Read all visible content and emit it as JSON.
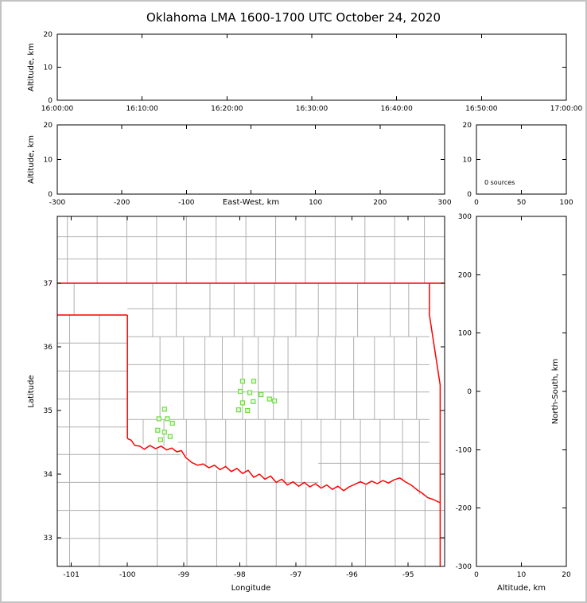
{
  "meta": {
    "title": "Oklahoma LMA 1600-1700 UTC October 24, 2020"
  },
  "colors": {
    "state_border": "#ff0000",
    "county_line": "#b0b0b0",
    "station_fill": "#e4fbda",
    "station_stroke": "#70dd46",
    "axis": "#000000",
    "background": "#ffffff",
    "frame": "#c3c3c3"
  },
  "chart_data": [
    {
      "id": "time-altitude",
      "type": "scatter",
      "points": [],
      "xlim": [
        57600,
        61200
      ],
      "ylim": [
        0,
        20
      ],
      "xticks": {
        "values": [
          57600,
          58200,
          58800,
          59400,
          60000,
          60600,
          61200
        ],
        "labels": [
          "16:00:00",
          "16:10:00",
          "16:20:00",
          "16:30:00",
          "16:40:00",
          "16:50:00",
          "17:00:00"
        ]
      },
      "yticks": {
        "values": [
          0,
          10,
          20
        ],
        "labels": [
          "0",
          "10",
          "20"
        ]
      },
      "ylabel": "Altitude, km"
    },
    {
      "id": "ew-altitude",
      "type": "scatter",
      "points": [],
      "xlim": [
        -300,
        300
      ],
      "ylim": [
        0,
        20
      ],
      "xticks": {
        "values": [
          -300,
          -200,
          -100,
          0,
          100,
          200,
          300
        ],
        "labels": [
          "-300",
          "-200",
          "-100",
          "",
          "100",
          "200",
          "300"
        ]
      },
      "yticks": {
        "values": [
          0,
          10,
          20
        ],
        "labels": [
          "0",
          "10",
          "20"
        ]
      },
      "ylabel": "Altitude, km",
      "xlabel": "East-West, km",
      "xlabel_inline": true
    },
    {
      "id": "alt-histogram",
      "type": "line",
      "points": [],
      "xlim": [
        0,
        100
      ],
      "ylim": [
        0,
        20
      ],
      "xticks": {
        "values": [
          0,
          50,
          100
        ],
        "labels": [
          "0",
          "50",
          "100"
        ]
      },
      "yticks": {
        "values": [
          0,
          10,
          20
        ],
        "labels": [
          "0",
          "10",
          "20"
        ]
      },
      "annotation": {
        "text": "0 sources"
      }
    },
    {
      "id": "plan-view",
      "type": "scatter",
      "xlim": [
        -101.25,
        -94.35
      ],
      "ylim": [
        32.55,
        38.05
      ],
      "xticks": {
        "values": [
          -101,
          -100,
          -99,
          -98,
          -97,
          -96,
          -95
        ],
        "labels": [
          "-101",
          "-100",
          "-99",
          "-98",
          "-97",
          "-96",
          "-95"
        ]
      },
      "yticks": {
        "values": [
          33,
          34,
          35,
          36,
          37
        ],
        "labels": [
          "33",
          "34",
          "35",
          "36",
          "37"
        ]
      },
      "xlabel": "Longitude",
      "ylabel": "Latitude",
      "stations": [
        [
          -97.95,
          35.46
        ],
        [
          -97.75,
          35.46
        ],
        [
          -97.99,
          35.3
        ],
        [
          -97.82,
          35.28
        ],
        [
          -97.62,
          35.25
        ],
        [
          -97.95,
          35.12
        ],
        [
          -97.76,
          35.14
        ],
        [
          -98.02,
          35.01
        ],
        [
          -97.86,
          35.0
        ],
        [
          -97.47,
          35.18
        ],
        [
          -97.38,
          35.15
        ],
        [
          -99.34,
          35.02
        ],
        [
          -99.44,
          34.87
        ],
        [
          -99.29,
          34.87
        ],
        [
          -99.2,
          34.8
        ],
        [
          -99.46,
          34.69
        ],
        [
          -99.34,
          34.66
        ],
        [
          -99.24,
          34.59
        ],
        [
          -99.41,
          34.54
        ]
      ],
      "state_borders": [
        [
          [
            -101.25,
            37
          ],
          [
            -94.35,
            37
          ]
        ],
        [
          [
            -101.25,
            36.5
          ],
          [
            -100,
            36.5
          ]
        ],
        [
          [
            -100,
            36.5
          ],
          [
            -100,
            34.56
          ]
        ],
        [
          [
            -100,
            34.56
          ],
          [
            -99.93,
            34.53
          ],
          [
            -99.87,
            34.45
          ],
          [
            -99.78,
            34.44
          ],
          [
            -99.7,
            34.39
          ],
          [
            -99.6,
            34.45
          ],
          [
            -99.5,
            34.4
          ],
          [
            -99.4,
            34.44
          ],
          [
            -99.3,
            34.38
          ],
          [
            -99.21,
            34.41
          ],
          [
            -99.12,
            34.35
          ],
          [
            -99.04,
            34.37
          ],
          [
            -98.96,
            34.26
          ],
          [
            -98.85,
            34.18
          ],
          [
            -98.75,
            34.14
          ],
          [
            -98.65,
            34.16
          ],
          [
            -98.55,
            34.1
          ],
          [
            -98.45,
            34.14
          ],
          [
            -98.35,
            34.07
          ],
          [
            -98.25,
            34.12
          ],
          [
            -98.15,
            34.04
          ],
          [
            -98.05,
            34.09
          ],
          [
            -97.95,
            34.01
          ],
          [
            -97.85,
            34.06
          ],
          [
            -97.75,
            33.95
          ],
          [
            -97.65,
            34.0
          ],
          [
            -97.55,
            33.92
          ],
          [
            -97.45,
            33.97
          ],
          [
            -97.35,
            33.87
          ],
          [
            -97.25,
            33.92
          ],
          [
            -97.15,
            33.83
          ],
          [
            -97.05,
            33.88
          ],
          [
            -96.95,
            33.81
          ],
          [
            -96.85,
            33.87
          ],
          [
            -96.75,
            33.8
          ],
          [
            -96.65,
            33.85
          ],
          [
            -96.55,
            33.78
          ],
          [
            -96.45,
            33.83
          ],
          [
            -96.35,
            33.76
          ],
          [
            -96.25,
            33.81
          ],
          [
            -96.15,
            33.74
          ],
          [
            -96.05,
            33.8
          ],
          [
            -95.95,
            33.84
          ],
          [
            -95.85,
            33.88
          ],
          [
            -95.75,
            33.84
          ],
          [
            -95.65,
            33.89
          ],
          [
            -95.55,
            33.85
          ],
          [
            -95.45,
            33.9
          ],
          [
            -95.35,
            33.86
          ],
          [
            -95.25,
            33.91
          ],
          [
            -95.15,
            33.94
          ],
          [
            -95.05,
            33.88
          ],
          [
            -94.95,
            33.83
          ],
          [
            -94.85,
            33.76
          ],
          [
            -94.75,
            33.7
          ],
          [
            -94.65,
            33.63
          ],
          [
            -94.55,
            33.6
          ],
          [
            -94.43,
            33.55
          ]
        ],
        [
          [
            -94.62,
            37
          ],
          [
            -94.62,
            36.5
          ],
          [
            -94.43,
            35.4
          ],
          [
            -94.43,
            33.55
          ],
          [
            -94.43,
            32.55
          ]
        ]
      ],
      "county_h": [
        [
          37.38,
          -101.25,
          -94.35
        ],
        [
          37.73,
          -101.25,
          -94.35
        ],
        [
          36.6,
          -100,
          -94.62
        ],
        [
          36.16,
          -100,
          -94.62
        ],
        [
          35.72,
          -100,
          -94.62
        ],
        [
          35.29,
          -100,
          -94.62
        ],
        [
          34.86,
          -100,
          -94.62
        ],
        [
          34.5,
          -99.1,
          -94.62
        ],
        [
          34.17,
          -96.6,
          -94.43
        ],
        [
          36.06,
          -101.25,
          -100
        ],
        [
          35.62,
          -101.25,
          -100
        ],
        [
          35.18,
          -101.25,
          -100
        ],
        [
          34.74,
          -101.25,
          -100
        ],
        [
          34.31,
          -101.25,
          -100
        ],
        [
          34.31,
          -100,
          -99.05
        ],
        [
          33.87,
          -101.25,
          -96.6
        ],
        [
          33.43,
          -101.25,
          -94.35
        ],
        [
          32.99,
          -101.25,
          -94.35
        ]
      ],
      "county_v": [
        [
          -101.07,
          37,
          38.05
        ],
        [
          -100.54,
          37,
          38.05
        ],
        [
          -100.01,
          37,
          38.05
        ],
        [
          -99.48,
          37,
          38.05
        ],
        [
          -98.95,
          37,
          38.05
        ],
        [
          -98.42,
          37,
          38.05
        ],
        [
          -97.89,
          37,
          38.05
        ],
        [
          -97.36,
          37,
          38.05
        ],
        [
          -96.83,
          37,
          38.05
        ],
        [
          -96.3,
          37,
          38.05
        ],
        [
          -95.77,
          37,
          38.05
        ],
        [
          -95.24,
          37,
          38.05
        ],
        [
          -94.71,
          37,
          38.05
        ],
        [
          -100.95,
          36.5,
          37
        ],
        [
          -101.03,
          32.55,
          36.5
        ],
        [
          -100.5,
          32.55,
          36.5
        ],
        [
          -99.55,
          36.16,
          37
        ],
        [
          -99.13,
          36.16,
          37
        ],
        [
          -98.53,
          36.16,
          37
        ],
        [
          -98.1,
          36.16,
          37
        ],
        [
          -97.74,
          36.16,
          37
        ],
        [
          -97.38,
          36.16,
          37
        ],
        [
          -97.0,
          36.16,
          37
        ],
        [
          -96.6,
          36.16,
          37
        ],
        [
          -96.29,
          36.16,
          37
        ],
        [
          -95.9,
          36.16,
          37
        ],
        [
          -95.32,
          36.16,
          37
        ],
        [
          -94.99,
          36.16,
          37
        ],
        [
          -99.42,
          34.86,
          36.16
        ],
        [
          -99.0,
          34.86,
          36.16
        ],
        [
          -98.62,
          34.86,
          36.16
        ],
        [
          -98.31,
          34.86,
          36.16
        ],
        [
          -97.95,
          34.86,
          36.16
        ],
        [
          -97.67,
          34.86,
          36.16
        ],
        [
          -97.4,
          34.86,
          36.16
        ],
        [
          -97.14,
          34.86,
          36.16
        ],
        [
          -96.62,
          34.86,
          36.16
        ],
        [
          -96.3,
          34.86,
          36.16
        ],
        [
          -95.97,
          34.86,
          36.16
        ],
        [
          -95.6,
          34.86,
          36.16
        ],
        [
          -95.25,
          34.86,
          36.16
        ],
        [
          -94.85,
          34.86,
          36.16
        ],
        [
          -99.72,
          34.47,
          34.86
        ],
        [
          -99.35,
          34.44,
          34.86
        ],
        [
          -98.95,
          34.28,
          34.86
        ],
        [
          -98.6,
          34.13,
          34.86
        ],
        [
          -98.25,
          34.1,
          34.86
        ],
        [
          -97.9,
          34.02,
          34.86
        ],
        [
          -97.55,
          33.94,
          34.86
        ],
        [
          -97.2,
          33.89,
          34.86
        ],
        [
          -96.9,
          33.83,
          34.86
        ],
        [
          -96.55,
          33.8,
          34.86
        ],
        [
          -96.2,
          33.78,
          34.86
        ],
        [
          -95.85,
          33.86,
          34.86
        ],
        [
          -95.5,
          33.88,
          34.86
        ],
        [
          -95.1,
          33.92,
          34.86
        ],
        [
          -94.8,
          33.68,
          34.86
        ],
        [
          -99.47,
          32.55,
          34.42
        ],
        [
          -98.94,
          32.55,
          34.2
        ],
        [
          -98.41,
          32.55,
          34.06
        ],
        [
          -97.88,
          32.55,
          33.98
        ],
        [
          -97.35,
          32.55,
          33.86
        ],
        [
          -96.82,
          32.55,
          33.8
        ],
        [
          -96.29,
          32.55,
          33.75
        ],
        [
          -95.76,
          32.55,
          33.82
        ],
        [
          -95.23,
          32.55,
          33.88
        ],
        [
          -94.7,
          32.55,
          33.6
        ]
      ]
    },
    {
      "id": "ns-altitude",
      "type": "scatter",
      "points": [],
      "xlim": [
        0,
        20
      ],
      "ylim": [
        -300,
        300
      ],
      "xticks": {
        "values": [
          0,
          10,
          20
        ],
        "labels": [
          "0",
          "10",
          "20"
        ]
      },
      "yticks": {
        "values": [
          -300,
          -200,
          -100,
          0,
          100,
          200,
          300
        ],
        "labels": [
          "-300",
          "-200",
          "-100",
          "0",
          "100",
          "200",
          "300"
        ]
      },
      "xlabel": "Altitude, km",
      "ylabel_right": "North-South, km"
    }
  ]
}
